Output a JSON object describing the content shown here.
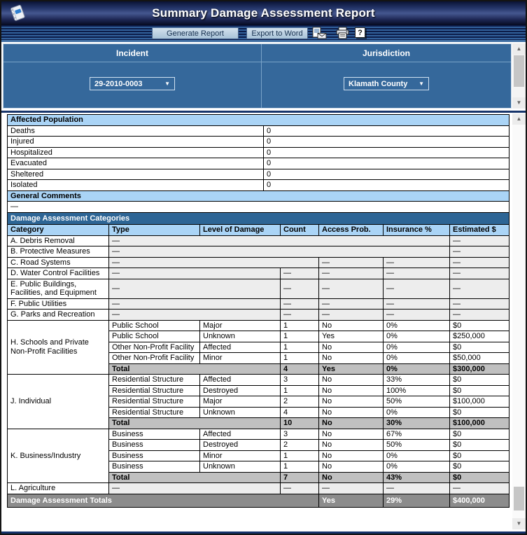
{
  "window": {
    "title": "Summary Damage Assessment Report"
  },
  "toolbar": {
    "generate_label": "Generate Report",
    "export_label": "Export to Word",
    "icons": [
      "export-document-icon",
      "printer-icon",
      "help-icon"
    ],
    "help_glyph": "?"
  },
  "filters": {
    "incident": {
      "header": "Incident",
      "selected": "29-2010-0003"
    },
    "jurisdiction": {
      "header": "Jurisdiction",
      "selected": "Klamath County"
    },
    "caret_glyph": "▼"
  },
  "affected_population": {
    "header": "Affected Population",
    "rows": [
      {
        "label": "Deaths",
        "value": "0"
      },
      {
        "label": "Injured",
        "value": "0"
      },
      {
        "label": "Hospitalized",
        "value": "0"
      },
      {
        "label": "Evacuated",
        "value": "0"
      },
      {
        "label": "Sheltered",
        "value": "0"
      },
      {
        "label": "Isolated",
        "value": "0"
      }
    ]
  },
  "general_comments": {
    "header": "General Comments",
    "value": "—"
  },
  "damage_table": {
    "header": "Damage Assessment Categories",
    "columns": [
      "Category",
      "Type",
      "Level of Damage",
      "Count",
      "Access Prob.",
      "Insurance %",
      "Estimated $"
    ],
    "rows": [
      [
        {
          "t": "A. Debris Removal",
          "k": "cat"
        },
        {
          "t": "—",
          "cs": 5,
          "k": "dim"
        },
        {
          "t": "—",
          "k": "dim"
        }
      ],
      [
        {
          "t": "B. Protective Measures",
          "k": "cat"
        },
        {
          "t": "—",
          "cs": 5,
          "k": "dim"
        },
        {
          "t": "—",
          "k": "dim"
        }
      ],
      [
        {
          "t": "C. Road Systems",
          "k": "cat"
        },
        {
          "t": "—",
          "cs": 3,
          "k": "dim"
        },
        {
          "t": "—",
          "k": "dim"
        },
        {
          "t": "—",
          "k": "dim"
        },
        {
          "t": "—",
          "k": "dim"
        }
      ],
      [
        {
          "t": "D. Water Control Facilities",
          "k": "cat"
        },
        {
          "t": "—",
          "cs": 2,
          "k": "dim"
        },
        {
          "t": "—",
          "k": "dim"
        },
        {
          "t": "—",
          "k": "dim"
        },
        {
          "t": "—",
          "k": "dim"
        },
        {
          "t": "—",
          "k": "dim"
        }
      ],
      [
        {
          "t": "E. Public Buildings, Facilities, and Equipment",
          "k": "cat"
        },
        {
          "t": "—",
          "cs": 2,
          "k": "dim"
        },
        {
          "t": "—",
          "k": "dim"
        },
        {
          "t": "—",
          "k": "dim"
        },
        {
          "t": "—",
          "k": "dim"
        },
        {
          "t": "—",
          "k": "dim"
        }
      ],
      [
        {
          "t": "F. Public Utilities",
          "k": "cat"
        },
        {
          "t": "—",
          "cs": 2,
          "k": "dim"
        },
        {
          "t": "—",
          "k": "dim"
        },
        {
          "t": "—",
          "k": "dim"
        },
        {
          "t": "—",
          "k": "dim"
        },
        {
          "t": "—",
          "k": "dim"
        }
      ],
      [
        {
          "t": "G. Parks and Recreation",
          "k": "cat"
        },
        {
          "t": "—",
          "cs": 2,
          "k": "dim"
        },
        {
          "t": "—",
          "k": "dim"
        },
        {
          "t": "—",
          "k": "dim"
        },
        {
          "t": "—",
          "k": "dim"
        },
        {
          "t": "—",
          "k": "dim"
        }
      ],
      [
        {
          "t": "H. Schools and Private Non-Profit Facilities",
          "k": "cat",
          "rs": 5
        },
        {
          "t": "Public School"
        },
        {
          "t": "Major"
        },
        {
          "t": "1"
        },
        {
          "t": "No"
        },
        {
          "t": "0%"
        },
        {
          "t": "$0"
        }
      ],
      [
        {
          "t": "Public School"
        },
        {
          "t": "Unknown"
        },
        {
          "t": "1"
        },
        {
          "t": "Yes"
        },
        {
          "t": "0%"
        },
        {
          "t": "$250,000"
        }
      ],
      [
        {
          "t": "Other Non-Profit Facility"
        },
        {
          "t": "Affected"
        },
        {
          "t": "1"
        },
        {
          "t": "No"
        },
        {
          "t": "0%"
        },
        {
          "t": "$0"
        }
      ],
      [
        {
          "t": "Other Non-Profit Facility"
        },
        {
          "t": "Minor"
        },
        {
          "t": "1"
        },
        {
          "t": "No"
        },
        {
          "t": "0%"
        },
        {
          "t": "$50,000"
        }
      ],
      [
        {
          "t": "Total",
          "cs": 2,
          "k": "total"
        },
        {
          "t": "4",
          "k": "total"
        },
        {
          "t": "Yes",
          "k": "total"
        },
        {
          "t": "0%",
          "k": "total"
        },
        {
          "t": "$300,000",
          "k": "total"
        }
      ],
      [
        {
          "t": "J. Individual",
          "k": "cat",
          "rs": 5
        },
        {
          "t": "Residential Structure"
        },
        {
          "t": "Affected"
        },
        {
          "t": "3"
        },
        {
          "t": "No"
        },
        {
          "t": "33%"
        },
        {
          "t": "$0"
        }
      ],
      [
        {
          "t": "Residential Structure"
        },
        {
          "t": "Destroyed"
        },
        {
          "t": "1"
        },
        {
          "t": "No"
        },
        {
          "t": "100%"
        },
        {
          "t": "$0"
        }
      ],
      [
        {
          "t": "Residential Structure"
        },
        {
          "t": "Major"
        },
        {
          "t": "2"
        },
        {
          "t": "No"
        },
        {
          "t": "50%"
        },
        {
          "t": "$100,000"
        }
      ],
      [
        {
          "t": "Residential Structure"
        },
        {
          "t": "Unknown"
        },
        {
          "t": "4"
        },
        {
          "t": "No"
        },
        {
          "t": "0%"
        },
        {
          "t": "$0"
        }
      ],
      [
        {
          "t": "Total",
          "cs": 2,
          "k": "total"
        },
        {
          "t": "10",
          "k": "total"
        },
        {
          "t": "No",
          "k": "total"
        },
        {
          "t": "30%",
          "k": "total"
        },
        {
          "t": "$100,000",
          "k": "total"
        }
      ],
      [
        {
          "t": "K. Business/Industry",
          "k": "cat",
          "rs": 5
        },
        {
          "t": "Business"
        },
        {
          "t": "Affected"
        },
        {
          "t": "3"
        },
        {
          "t": "No"
        },
        {
          "t": "67%"
        },
        {
          "t": "$0"
        }
      ],
      [
        {
          "t": "Business"
        },
        {
          "t": "Destroyed"
        },
        {
          "t": "2"
        },
        {
          "t": "No"
        },
        {
          "t": "50%"
        },
        {
          "t": "$0"
        }
      ],
      [
        {
          "t": "Business"
        },
        {
          "t": "Minor"
        },
        {
          "t": "1"
        },
        {
          "t": "No"
        },
        {
          "t": "0%"
        },
        {
          "t": "$0"
        }
      ],
      [
        {
          "t": "Business"
        },
        {
          "t": "Unknown"
        },
        {
          "t": "1"
        },
        {
          "t": "No"
        },
        {
          "t": "0%"
        },
        {
          "t": "$0"
        }
      ],
      [
        {
          "t": "Total",
          "cs": 2,
          "k": "total"
        },
        {
          "t": "7",
          "k": "total"
        },
        {
          "t": "No",
          "k": "total"
        },
        {
          "t": "43%",
          "k": "total"
        },
        {
          "t": "$0",
          "k": "total"
        }
      ],
      [
        {
          "t": "L. Agriculture",
          "k": "cat"
        },
        {
          "t": "—",
          "cs": 2,
          "k": "dim"
        },
        {
          "t": "—",
          "k": "dim"
        },
        {
          "t": "—",
          "k": "dim"
        },
        {
          "t": "—",
          "k": "dim"
        },
        {
          "t": "—",
          "k": "dim"
        }
      ],
      [
        {
          "t": "Damage Assessment Totals",
          "cs": 4,
          "k": "grand"
        },
        {
          "t": "Yes",
          "k": "grand"
        },
        {
          "t": "29%",
          "k": "grand"
        },
        {
          "t": "$400,000",
          "k": "grand"
        }
      ]
    ]
  },
  "colors": {
    "panel_blue": "#35689b",
    "header_light_blue": "#aad4f6",
    "section_dark_blue": "#2d6595",
    "total_gray": "#c0c0c0",
    "grand_total_gray": "#8c8c8c"
  }
}
